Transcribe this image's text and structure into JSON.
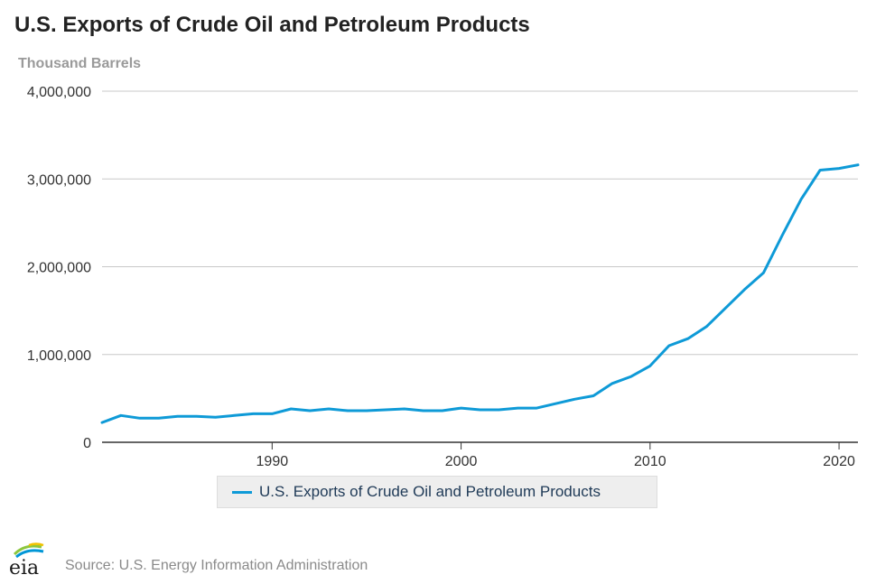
{
  "header": {
    "title": "U.S. Exports of Crude Oil and Petroleum Products",
    "units": "Thousand Barrels"
  },
  "legend": {
    "label": "U.S. Exports of Crude Oil and Petroleum Products"
  },
  "footer": {
    "logo_text": "eia",
    "source": "Source: U.S. Energy Information Administration"
  },
  "colors": {
    "series": "#0e9ad7",
    "grid": "#c8c8c8",
    "axis": "#333333",
    "tick_label": "#333333",
    "logo_green": "#8cc63e",
    "logo_blue": "#0096d6",
    "logo_yellow": "#f2c200"
  },
  "chart_data": {
    "type": "line",
    "title": "U.S. Exports of Crude Oil and Petroleum Products",
    "ylabel": "Thousand Barrels",
    "xlabel": "",
    "xlim": [
      1981,
      2021
    ],
    "ylim": [
      0,
      4000000
    ],
    "y_ticks": [
      0,
      1000000,
      2000000,
      3000000,
      4000000
    ],
    "y_tick_labels": [
      "0",
      "1,000,000",
      "2,000,000",
      "3,000,000",
      "4,000,000"
    ],
    "x_ticks": [
      1990,
      2000,
      2010,
      2020
    ],
    "x_tick_labels": [
      "1990",
      "2000",
      "2010",
      "2020"
    ],
    "grid": true,
    "legend_position": "bottom",
    "series": [
      {
        "name": "U.S. Exports of Crude Oil and Petroleum Products",
        "x": [
          1981,
          1982,
          1983,
          1984,
          1985,
          1986,
          1987,
          1988,
          1989,
          1990,
          1991,
          1992,
          1993,
          1994,
          1995,
          1996,
          1997,
          1998,
          1999,
          2000,
          2001,
          2002,
          2003,
          2004,
          2005,
          2006,
          2007,
          2008,
          2009,
          2010,
          2011,
          2012,
          2013,
          2014,
          2015,
          2016,
          2017,
          2018,
          2019,
          2020,
          2021
        ],
        "values": [
          225000,
          305000,
          275000,
          275000,
          295000,
          295000,
          285000,
          305000,
          325000,
          325000,
          380000,
          360000,
          380000,
          360000,
          360000,
          370000,
          380000,
          360000,
          360000,
          390000,
          370000,
          370000,
          390000,
          390000,
          440000,
          490000,
          530000,
          670000,
          750000,
          870000,
          1100000,
          1180000,
          1320000,
          1530000,
          1740000,
          1930000,
          2360000,
          2770000,
          3100000,
          3120000,
          3160000
        ]
      }
    ]
  }
}
